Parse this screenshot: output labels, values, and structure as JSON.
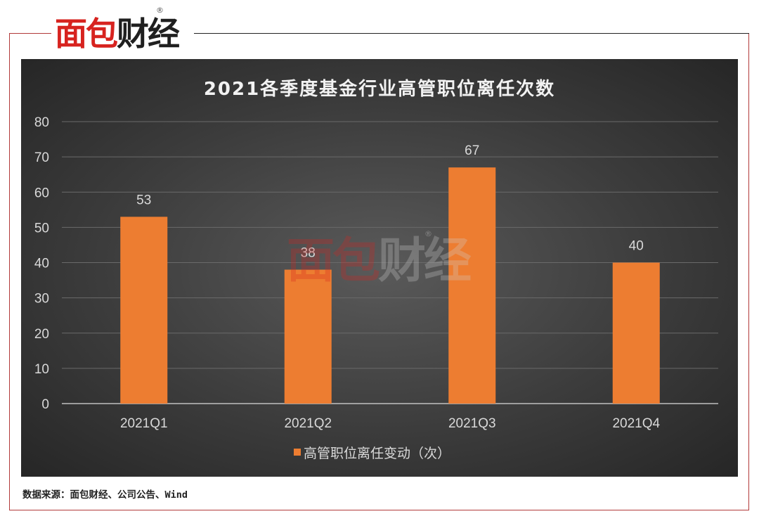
{
  "brand": {
    "logo_part1": "面包",
    "logo_part2": "财经",
    "reg_mark": "®"
  },
  "chart_data": {
    "type": "bar",
    "title": "2021各季度基金行业高管职位离任次数",
    "categories": [
      "2021Q1",
      "2021Q2",
      "2021Q3",
      "2021Q4"
    ],
    "series": [
      {
        "name": "高管职位离任变动（次）",
        "values": [
          53,
          38,
          67,
          40
        ],
        "color": "#ed7d31"
      }
    ],
    "ylim": [
      0,
      80
    ],
    "yticks": [
      0,
      10,
      20,
      30,
      40,
      50,
      60,
      70,
      80
    ],
    "grid": true,
    "legend_position": "bottom",
    "data_labels": true
  },
  "source_note": "数据来源：面包财经、公司公告、Wind",
  "colors": {
    "background": "#3c3c3c",
    "bar": "#ed7d31",
    "frame": "#b23a3a",
    "brand_red": "#d7231f"
  }
}
